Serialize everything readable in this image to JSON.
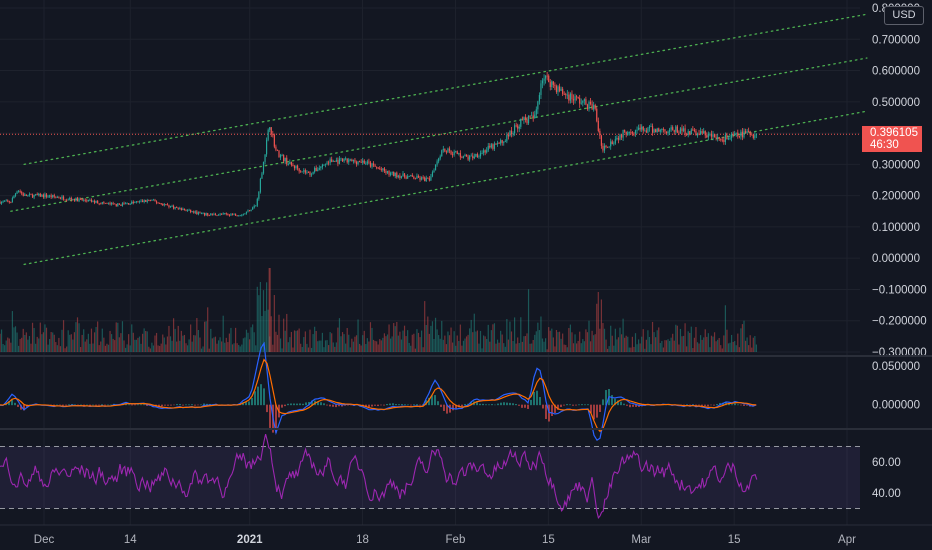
{
  "currency_button": "USD",
  "last_price": {
    "price": "0.396105",
    "countdown": "46:30",
    "color": "#f05350"
  },
  "colors": {
    "background": "#131722",
    "up": "#26a69a",
    "down": "#ef5350",
    "channel": "#4caf50",
    "macd": "#2962ff",
    "signal": "#ff6d00",
    "rsi": "#9c27b0",
    "rsi_band": "#7e57c2"
  },
  "chart_data": [
    {
      "type": "candlestick",
      "ylim": [
        -0.3,
        0.8
      ],
      "y_ticks": [
        "0.800000",
        "0.700000",
        "0.600000",
        "0.500000",
        "0.400000",
        "0.300000",
        "0.200000",
        "0.100000",
        "0.000000",
        "−0.100000",
        "−0.200000",
        "−0.300000"
      ],
      "x_ticks": [
        "Dec",
        "14",
        "2021",
        "18",
        "Feb",
        "15",
        "Mar",
        "15",
        "Apr"
      ],
      "x_tick_dates": [
        "2020-12-01",
        "2020-12-14",
        "2021-01-01",
        "2021-01-18",
        "2021-02-01",
        "2021-02-15",
        "2021-03-01",
        "2021-03-15",
        "2021-04-01"
      ],
      "x_range": [
        "2020-11-26",
        "2021-04-05"
      ],
      "close_path": [
        {
          "date": "2020-11-26",
          "value": 0.18
        },
        {
          "date": "2020-11-27",
          "value": 0.22
        },
        {
          "date": "2020-11-28",
          "value": 0.2
        },
        {
          "date": "2020-12-01",
          "value": 0.2
        },
        {
          "date": "2020-12-07",
          "value": 0.185
        },
        {
          "date": "2020-12-12",
          "value": 0.17
        },
        {
          "date": "2020-12-17",
          "value": 0.185
        },
        {
          "date": "2020-12-21",
          "value": 0.16
        },
        {
          "date": "2020-12-25",
          "value": 0.14
        },
        {
          "date": "2020-12-31",
          "value": 0.14
        },
        {
          "date": "2021-01-02",
          "value": 0.17
        },
        {
          "date": "2021-01-03",
          "value": 0.3
        },
        {
          "date": "2021-01-04",
          "value": 0.43
        },
        {
          "date": "2021-01-05",
          "value": 0.34
        },
        {
          "date": "2021-01-07",
          "value": 0.3
        },
        {
          "date": "2021-01-10",
          "value": 0.27
        },
        {
          "date": "2021-01-13",
          "value": 0.31
        },
        {
          "date": "2021-01-18",
          "value": 0.31
        },
        {
          "date": "2021-01-22",
          "value": 0.27
        },
        {
          "date": "2021-01-28",
          "value": 0.25
        },
        {
          "date": "2021-01-30",
          "value": 0.35
        },
        {
          "date": "2021-02-03",
          "value": 0.32
        },
        {
          "date": "2021-02-08",
          "value": 0.37
        },
        {
          "date": "2021-02-11",
          "value": 0.44
        },
        {
          "date": "2021-02-13",
          "value": 0.45
        },
        {
          "date": "2021-02-14",
          "value": 0.58
        },
        {
          "date": "2021-02-15",
          "value": 0.57
        },
        {
          "date": "2021-02-17",
          "value": 0.53
        },
        {
          "date": "2021-02-20",
          "value": 0.5
        },
        {
          "date": "2021-02-22",
          "value": 0.48
        },
        {
          "date": "2021-02-23",
          "value": 0.35
        },
        {
          "date": "2021-02-25",
          "value": 0.38
        },
        {
          "date": "2021-02-27",
          "value": 0.41
        },
        {
          "date": "2021-03-02",
          "value": 0.41
        },
        {
          "date": "2021-03-06",
          "value": 0.41
        },
        {
          "date": "2021-03-10",
          "value": 0.4
        },
        {
          "date": "2021-03-13",
          "value": 0.38
        },
        {
          "date": "2021-03-17",
          "value": 0.4
        },
        {
          "date": "2021-03-18",
          "value": 0.396
        }
      ],
      "channel_lines": [
        {
          "from": {
            "date": "2020-11-28",
            "value": 0.3
          },
          "to": {
            "date": "2021-04-04",
            "value": 0.78
          }
        },
        {
          "from": {
            "date": "2020-11-26",
            "value": 0.15
          },
          "to": {
            "date": "2021-04-04",
            "value": 0.64
          }
        },
        {
          "from": {
            "date": "2020-11-28",
            "value": -0.02
          },
          "to": {
            "date": "2021-04-04",
            "value": 0.47
          }
        }
      ]
    },
    {
      "type": "bar",
      "name": "Volume"
    },
    {
      "type": "line",
      "name": "MACD",
      "ylim": [
        -0.03,
        0.06
      ],
      "y_ticks": [
        "0.050000",
        "0.000000"
      ]
    },
    {
      "type": "line",
      "name": "RSI",
      "ylim": [
        20,
        80
      ],
      "y_ticks": [
        "60.00",
        "40.00"
      ],
      "bands": [
        30,
        70
      ]
    }
  ]
}
